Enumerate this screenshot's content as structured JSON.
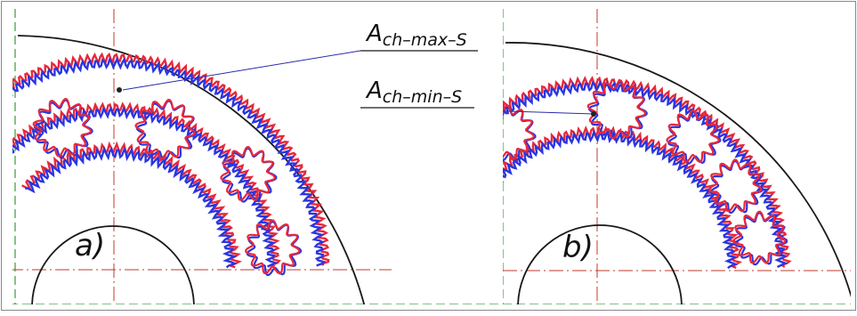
{
  "panels": [
    {
      "id": "a",
      "label": "a)"
    },
    {
      "id": "b",
      "label": "b)"
    }
  ],
  "annotations": {
    "max": {
      "main": "A",
      "sub": "ch–max–S"
    },
    "min": {
      "main": "A",
      "sub": "ch–min–S"
    }
  },
  "colors": {
    "outline": "#1a1a1a",
    "centerline": "#c0392b",
    "frame": "#3a9a3a",
    "gear_red": "#e8283a",
    "gear_blue": "#2a35e0",
    "leader": "#2a2aa8"
  },
  "icons": [
    "gear-pattern",
    "center-mark"
  ]
}
